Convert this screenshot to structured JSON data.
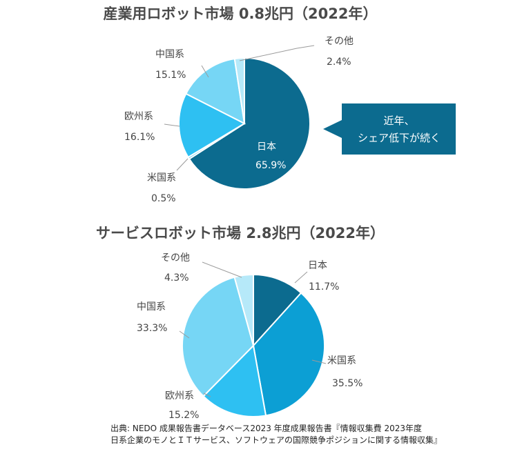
{
  "chart_data": [
    {
      "type": "pie",
      "title": "産業用ロボット市場 0.8兆円（2022年）",
      "slices": [
        {
          "name": "日本",
          "value": 65.9,
          "label": "65.9%",
          "color": "#0c6b8f"
        },
        {
          "name": "米国系",
          "value": 0.5,
          "label": "0.5%",
          "color": "#5fcdf0"
        },
        {
          "name": "欧州系",
          "value": 16.1,
          "label": "16.1%",
          "color": "#2ec0f2"
        },
        {
          "name": "中国系",
          "value": 15.1,
          "label": "15.1%",
          "color": "#76d6f5"
        },
        {
          "name": "その他",
          "value": 2.4,
          "label": "2.4%",
          "color": "#b6e9f9"
        }
      ],
      "callout": {
        "line1": "近年、",
        "line2": "シェア低下が続く"
      }
    },
    {
      "type": "pie",
      "title": "サービスロボット市場 2.8兆円（2022年）",
      "slices": [
        {
          "name": "日本",
          "value": 11.7,
          "label": "11.7%",
          "color": "#0c6b8f"
        },
        {
          "name": "米国系",
          "value": 35.5,
          "label": "35.5%",
          "color": "#0c9fd4"
        },
        {
          "name": "欧州系",
          "value": 15.2,
          "label": "15.2%",
          "color": "#2ec0f2"
        },
        {
          "name": "中国系",
          "value": 33.3,
          "label": "33.3%",
          "color": "#76d6f5"
        },
        {
          "name": "その他",
          "value": 4.3,
          "label": "4.3%",
          "color": "#b6e9f9"
        }
      ]
    }
  ],
  "source": {
    "line1": "出典: NEDO 成果報告書データベース2023 年度成果報告書『情報収集費 2023年度",
    "line2": "日系企業のモノとＩＴサービス、ソフトウェアの国際競争ポジションに関する情報収集』"
  }
}
